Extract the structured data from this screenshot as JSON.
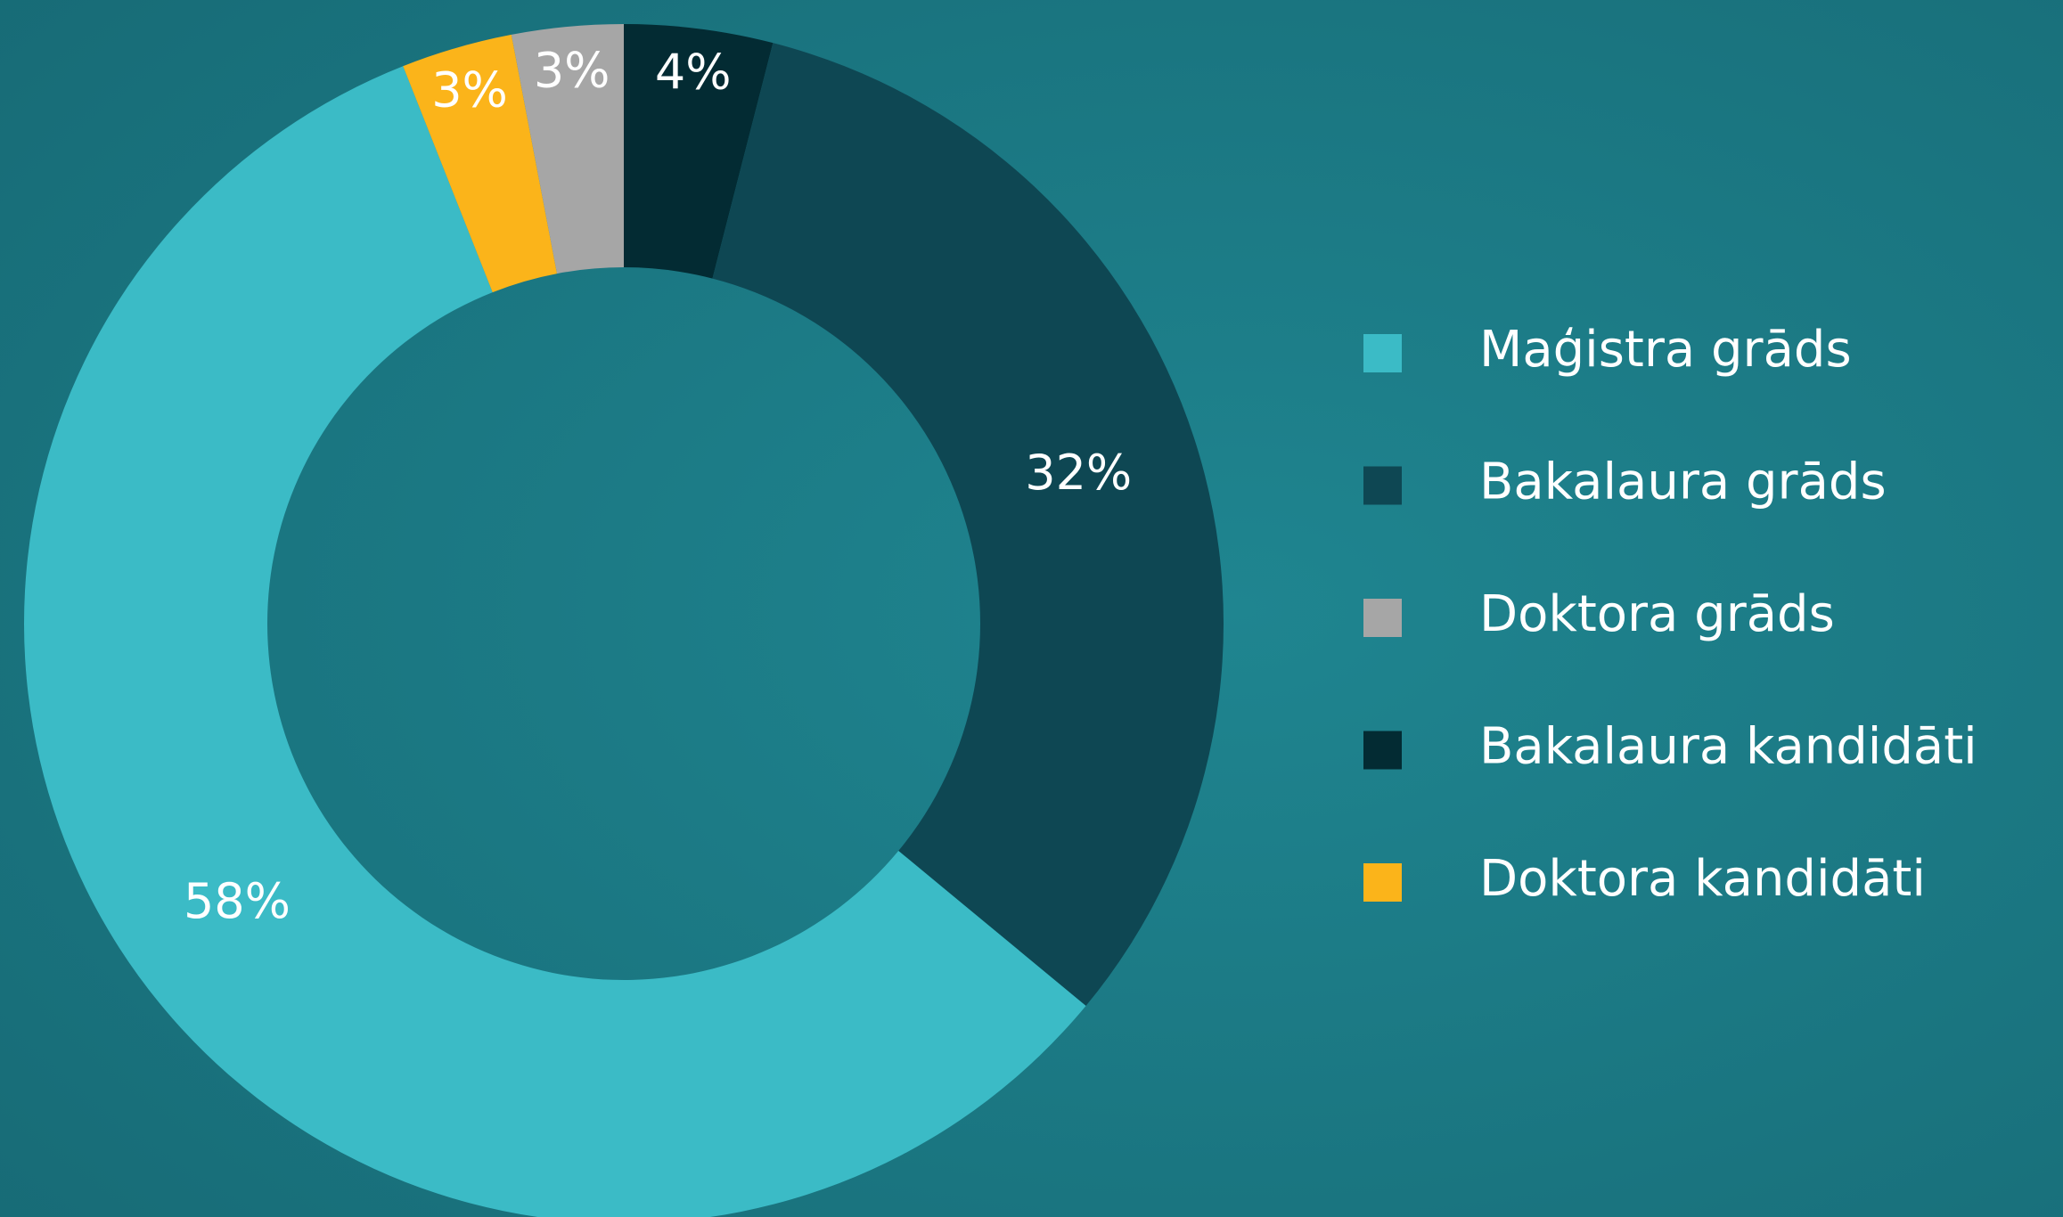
{
  "chart_data": {
    "type": "donut",
    "categories": [
      "Maģistra grāds",
      "Bakalaura grāds",
      "Doktora grāds",
      "Bakalaura kandidāti",
      "Doktora kandidāti"
    ],
    "values": [
      58,
      32,
      3,
      4,
      3
    ],
    "value_labels": [
      "58%",
      "32%",
      "3%",
      "4%",
      "3%"
    ],
    "colors": [
      "#3bbbc6",
      "#0e4753",
      "#a6a6a6",
      "#032b33",
      "#fbb41a"
    ],
    "legend": "right"
  }
}
